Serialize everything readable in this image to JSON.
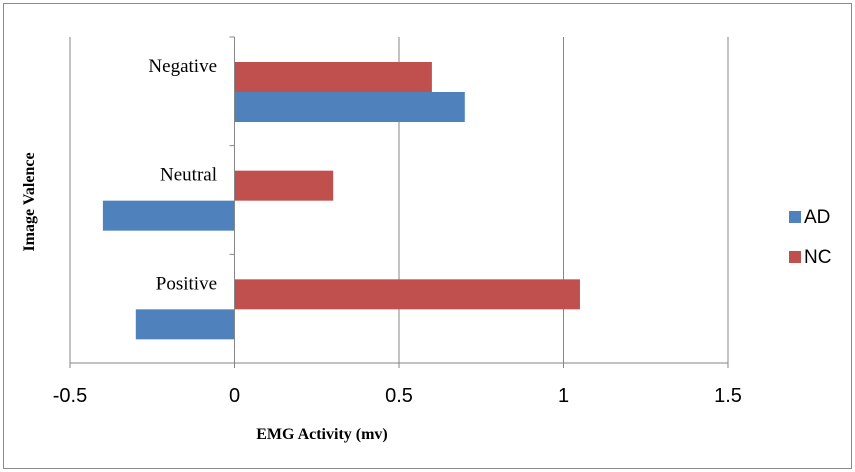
{
  "chart_data": {
    "type": "bar",
    "orientation": "horizontal",
    "title": "",
    "xlabel": "EMG Activity (mv)",
    "ylabel": "Image Valence",
    "xlim": [
      -0.5,
      1.5
    ],
    "x_ticks": [
      "-0.5",
      "0",
      "0.5",
      "1",
      "1.5"
    ],
    "categories": [
      "Negative",
      "Neutral",
      "Positive"
    ],
    "series": [
      {
        "name": "NC",
        "color": "#c0504d",
        "values": [
          0.6,
          0.3,
          1.05
        ]
      },
      {
        "name": "AD",
        "color": "#4f81bd",
        "values": [
          0.7,
          -0.4,
          -0.3
        ]
      }
    ],
    "grid": "vertical major gridlines",
    "legend_position": "right"
  }
}
